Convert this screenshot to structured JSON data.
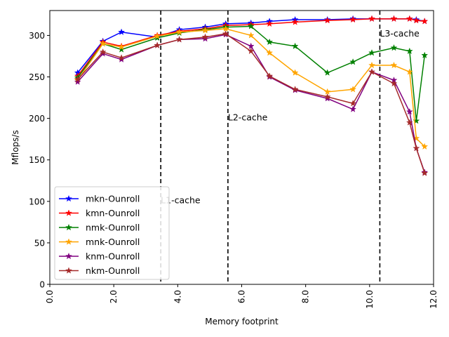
{
  "chart_data": {
    "type": "line",
    "xlabel": "Memory footprint",
    "ylabel": "Mflops/s",
    "xlim": [
      0,
      12
    ],
    "ylim": [
      0,
      330
    ],
    "xticks": [
      0,
      2,
      4,
      6,
      8,
      10,
      12
    ],
    "xtick_labels": [
      "0.0",
      "2.0",
      "4.0",
      "6.0",
      "8.0",
      "10.0",
      "12.0"
    ],
    "yticks": [
      0,
      50,
      100,
      150,
      200,
      250,
      300
    ],
    "ytick_labels": [
      "0",
      "50",
      "100",
      "150",
      "200",
      "250",
      "300"
    ],
    "grid": false,
    "legend_position": "lower-left",
    "vlines": [
      {
        "x": 3.47,
        "label": "L1-cache",
        "label_y": 102
      },
      {
        "x": 5.57,
        "label": "L2-cache",
        "label_y": 202
      },
      {
        "x": 10.32,
        "label": "L3-cache",
        "label_y": 303
      }
    ],
    "series": [
      {
        "name": "mkn-Ounroll",
        "color": "#0000ff",
        "x": [
          0.87,
          1.66,
          2.24,
          3.36,
          4.05,
          4.86,
          5.5,
          6.29,
          6.87,
          7.67,
          8.68,
          9.48,
          10.07,
          10.76,
          11.25,
          11.46,
          11.72
        ],
        "y": [
          255,
          293,
          304,
          298,
          307,
          310,
          314,
          315,
          317,
          319,
          319,
          320,
          320,
          320,
          320,
          319,
          317
        ]
      },
      {
        "name": "kmn-Ounroll",
        "color": "#ff0000",
        "x": [
          0.87,
          1.66,
          2.24,
          3.36,
          4.05,
          4.86,
          5.5,
          6.29,
          6.87,
          7.67,
          8.68,
          9.48,
          10.07,
          10.76,
          11.25,
          11.46,
          11.72
        ],
        "y": [
          251,
          292,
          287,
          300,
          305,
          308,
          312,
          313,
          314,
          316,
          318,
          319,
          320,
          320,
          320,
          318,
          317
        ]
      },
      {
        "name": "nmk-Ounroll",
        "color": "#008000",
        "x": [
          0.87,
          1.66,
          2.24,
          3.36,
          4.05,
          4.86,
          5.5,
          6.29,
          6.87,
          7.67,
          8.68,
          9.48,
          10.07,
          10.76,
          11.25,
          11.46,
          11.72
        ],
        "y": [
          249,
          290,
          283,
          297,
          303,
          307,
          310,
          311,
          292,
          287,
          255,
          268,
          279,
          285,
          281,
          197,
          276
        ]
      },
      {
        "name": "mnk-Ounroll",
        "color": "#ffa500",
        "x": [
          0.87,
          1.66,
          2.24,
          3.36,
          4.05,
          4.86,
          5.5,
          6.29,
          6.87,
          7.67,
          8.68,
          9.48,
          10.07,
          10.76,
          11.25,
          11.46,
          11.72
        ],
        "y": [
          246,
          290,
          286,
          299,
          304,
          306,
          308,
          300,
          279,
          255,
          232,
          235,
          264,
          264,
          256,
          176,
          166
        ]
      },
      {
        "name": "knm-Ounroll",
        "color": "#800080",
        "x": [
          0.87,
          1.66,
          2.24,
          3.36,
          4.05,
          4.86,
          5.5,
          6.29,
          6.87,
          7.67,
          8.68,
          9.48,
          10.07,
          10.76,
          11.25,
          11.46,
          11.72
        ],
        "y": [
          244,
          278,
          271,
          288,
          295,
          296,
          301,
          287,
          250,
          234,
          224,
          211,
          256,
          246,
          208,
          164,
          135
        ]
      },
      {
        "name": "nkm-Ounroll",
        "color": "#a52a2a",
        "x": [
          0.87,
          1.66,
          2.24,
          3.36,
          4.05,
          4.86,
          5.5,
          6.29,
          6.87,
          7.67,
          8.68,
          9.48,
          10.07,
          10.76,
          11.25,
          11.46,
          11.72
        ],
        "y": [
          247,
          280,
          273,
          288,
          295,
          298,
          302,
          281,
          251,
          235,
          226,
          218,
          256,
          242,
          195,
          164,
          134
        ]
      }
    ]
  }
}
